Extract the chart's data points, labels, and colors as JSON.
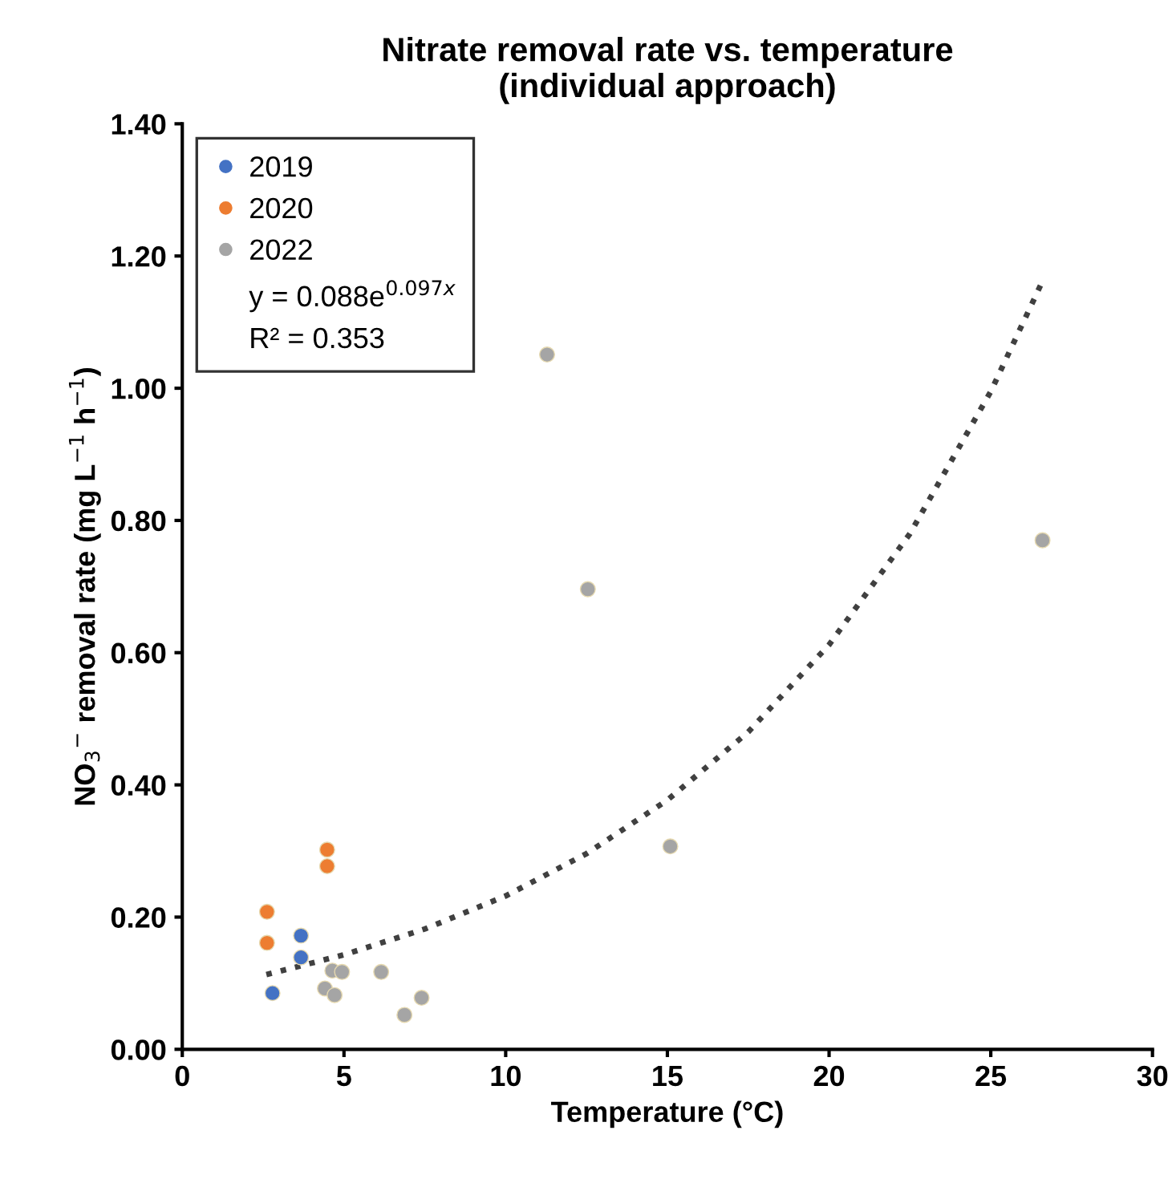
{
  "chart_data": {
    "type": "scatter",
    "title": "Nitrate removal rate vs. temperature\n(individual approach)",
    "xlabel": "Temperature (°C)",
    "ylabel": "NO$_{3}$$^{−}$ removal rate (mg L$^{−1}$ h$^{−1}$)",
    "xlim": [
      0,
      30
    ],
    "xticks": [
      0,
      5,
      10,
      15,
      20,
      25,
      30
    ],
    "ylim": [
      0,
      1.4
    ],
    "yticks": [
      {
        "value": 0,
        "label": "0.00"
      },
      {
        "value": 0.2,
        "label": "0.20"
      },
      {
        "value": 0.4,
        "label": "0.40"
      },
      {
        "value": 0.6,
        "label": "0.60"
      },
      {
        "value": 0.8,
        "label": "0.80"
      },
      {
        "value": 1.0,
        "label": "1.00"
      },
      {
        "value": 1.2,
        "label": "1.20"
      },
      {
        "value": 1.4,
        "label": "1.40"
      }
    ],
    "grid": false,
    "legend": "top left",
    "annotations": [
      "y = 0.088e$^{0.097x}$",
      "R² = 0.353"
    ],
    "series": [
      {
        "name": "2019",
        "marker": "circle",
        "color": "#4472c4",
        "x": [
          3.67,
          3.67,
          2.79
        ],
        "values": [
          0.172,
          0.139,
          0.085
        ]
      },
      {
        "name": "2020",
        "marker": "circle",
        "color": "#ed7d31",
        "x": [
          2.62,
          2.62,
          4.48,
          4.48
        ],
        "values": [
          0.208,
          0.161,
          0.302,
          0.277
        ]
      },
      {
        "name": "2022",
        "marker": "circle",
        "color": "#a5a5a5",
        "x": [
          4.64,
          4.94,
          6.15,
          4.41,
          4.71,
          6.87,
          7.4,
          11.28,
          12.54,
          15.09,
          26.6
        ],
        "values": [
          0.119,
          0.117,
          0.117,
          0.092,
          0.082,
          0.052,
          0.078,
          1.051,
          0.696,
          0.307,
          0.77
        ]
      },
      {
        "type": "line",
        "marker": "none",
        "line_style": "dotted",
        "color": "#404040",
        "x": [
          2.6,
          5,
          7.5,
          10,
          12.5,
          15,
          17.5,
          20,
          22.5,
          25,
          26.6
        ],
        "values": [
          0.113,
          0.143,
          0.182,
          0.232,
          0.296,
          0.377,
          0.48,
          0.612,
          0.78,
          0.995,
          1.162
        ]
      }
    ]
  }
}
